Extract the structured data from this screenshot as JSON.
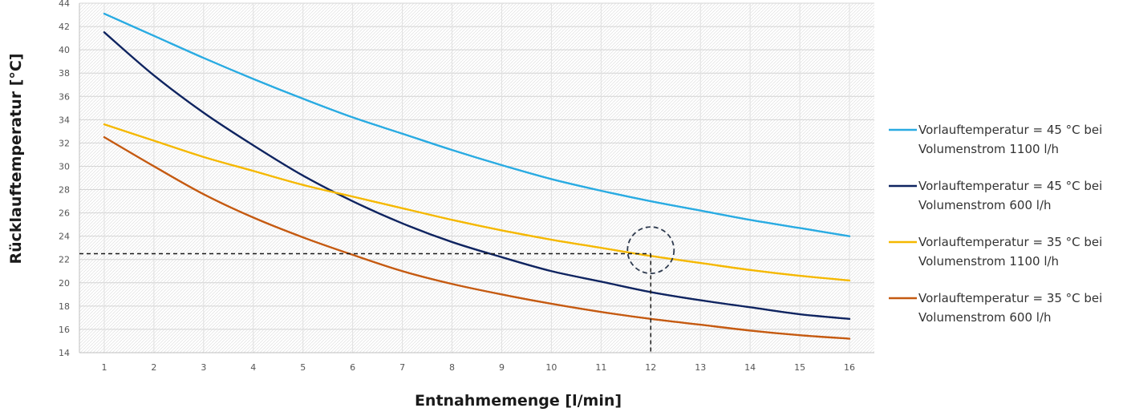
{
  "chart_data": {
    "type": "line",
    "xlabel": "Entnahmemenge [l/min]",
    "ylabel": "Rücklauftemperatur [°C]",
    "x": [
      1,
      2,
      3,
      4,
      5,
      6,
      7,
      8,
      9,
      10,
      11,
      12,
      13,
      14,
      15,
      16
    ],
    "xlim": [
      0.5,
      16.5
    ],
    "ylim": [
      14,
      44
    ],
    "y_ticks": [
      14,
      16,
      18,
      20,
      22,
      24,
      26,
      28,
      30,
      32,
      34,
      36,
      38,
      40,
      42,
      44
    ],
    "grid": true,
    "legend_position": "right",
    "series": [
      {
        "name_line1": "Vorlauftemperatur = 45 °C bei",
        "name_line2": "Volumenstrom 1100 l/h",
        "color": "#29abe2",
        "values": [
          43.1,
          41.2,
          39.3,
          37.5,
          35.8,
          34.2,
          32.8,
          31.4,
          30.1,
          28.9,
          27.9,
          27.0,
          26.2,
          25.4,
          24.7,
          24.0
        ]
      },
      {
        "name_line1": "Vorlauftemperatur = 45 °C bei",
        "name_line2": "Volumenstrom 600 l/h",
        "color": "#0f2460",
        "values": [
          41.5,
          37.8,
          34.6,
          31.8,
          29.2,
          27.0,
          25.1,
          23.5,
          22.2,
          21.0,
          20.1,
          19.2,
          18.5,
          17.9,
          17.3,
          16.9
        ]
      },
      {
        "name_line1": "Vorlauftemperatur = 35 °C bei",
        "name_line2": "Volumenstrom 1100 l/h",
        "color": "#f5b800",
        "values": [
          33.6,
          32.2,
          30.8,
          29.6,
          28.4,
          27.4,
          26.4,
          25.4,
          24.5,
          23.7,
          23.0,
          22.3,
          21.7,
          21.1,
          20.6,
          20.2
        ]
      },
      {
        "name_line1": "Vorlauftemperatur = 35 °C bei",
        "name_line2": "Volumenstrom 600 l/h",
        "color": "#c55a11",
        "values": [
          32.5,
          30.0,
          27.6,
          25.6,
          23.9,
          22.4,
          21.0,
          19.9,
          19.0,
          18.2,
          17.5,
          16.9,
          16.4,
          15.9,
          15.5,
          15.2
        ]
      }
    ],
    "annotation": {
      "reference_x": 12,
      "reference_y": 22.5,
      "line_style": "dashed",
      "marker": "dashed circle",
      "marker_color": "#2e3a4e"
    }
  }
}
